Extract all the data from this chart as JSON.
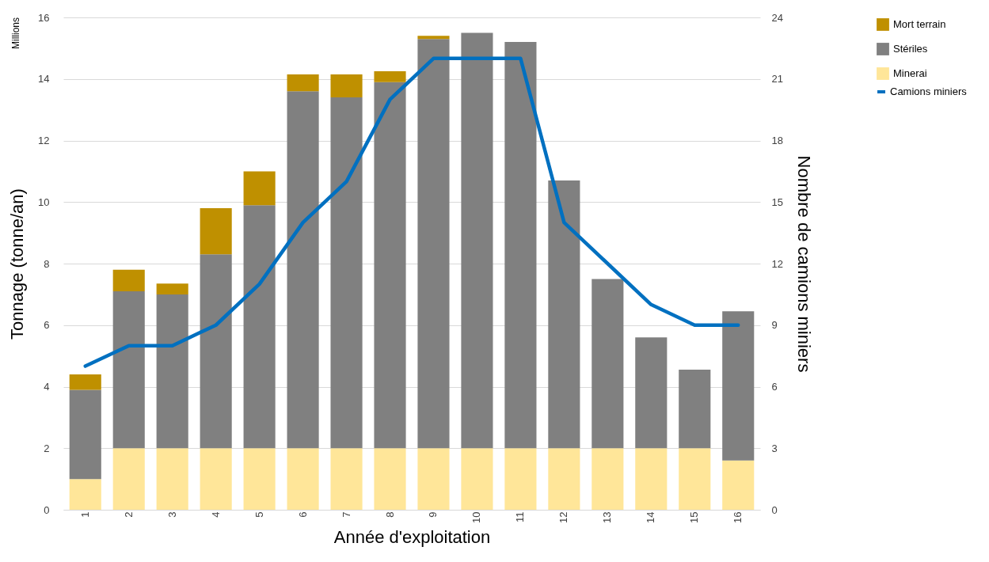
{
  "chart_data": {
    "type": "bar",
    "stacked": true,
    "xlabel": "Année d'exploitation",
    "ylabel": "Tonnage (tonne/an)",
    "y2label": "Nombre de camions miniers",
    "annotations": [
      "Millions"
    ],
    "categories": [
      "1",
      "2",
      "3",
      "4",
      "5",
      "6",
      "7",
      "8",
      "9",
      "10",
      "11",
      "12",
      "13",
      "14",
      "15",
      "16"
    ],
    "series": [
      {
        "name": "Minerai",
        "color": "#ffe699",
        "values": [
          1,
          2,
          2,
          2,
          2,
          2,
          2,
          2,
          2,
          2,
          2,
          2,
          2,
          2,
          2,
          1.6
        ]
      },
      {
        "name": "Stériles",
        "color": "#808080",
        "values": [
          2.9,
          5.1,
          5,
          6.3,
          7.9,
          11.6,
          11.4,
          11.9,
          13.3,
          13.5,
          13.2,
          8.7,
          5.5,
          3.6,
          2.55,
          4.85
        ]
      },
      {
        "name": "Mort terrain",
        "color": "#bf9000",
        "values": [
          0.5,
          0.7,
          0.35,
          1.5,
          1.1,
          0.55,
          0.75,
          0.35,
          0.1,
          0,
          0,
          0,
          0,
          0,
          0,
          0
        ]
      },
      {
        "name": "Camions miniers",
        "type": "line",
        "axis": "y2",
        "color": "#0070c0",
        "values": [
          7,
          8,
          8,
          9,
          11,
          14,
          16,
          20,
          22,
          22,
          22,
          14,
          12,
          10,
          9,
          9
        ]
      }
    ],
    "ylim": [
      0,
      16
    ],
    "yticks": [
      0,
      2,
      4,
      6,
      8,
      10,
      12,
      14,
      16
    ],
    "y2lim": [
      0,
      24
    ],
    "y2ticks": [
      0,
      3,
      6,
      9,
      12,
      15,
      18,
      21,
      24
    ],
    "grid": "y",
    "legend": "right",
    "marker": "none"
  }
}
